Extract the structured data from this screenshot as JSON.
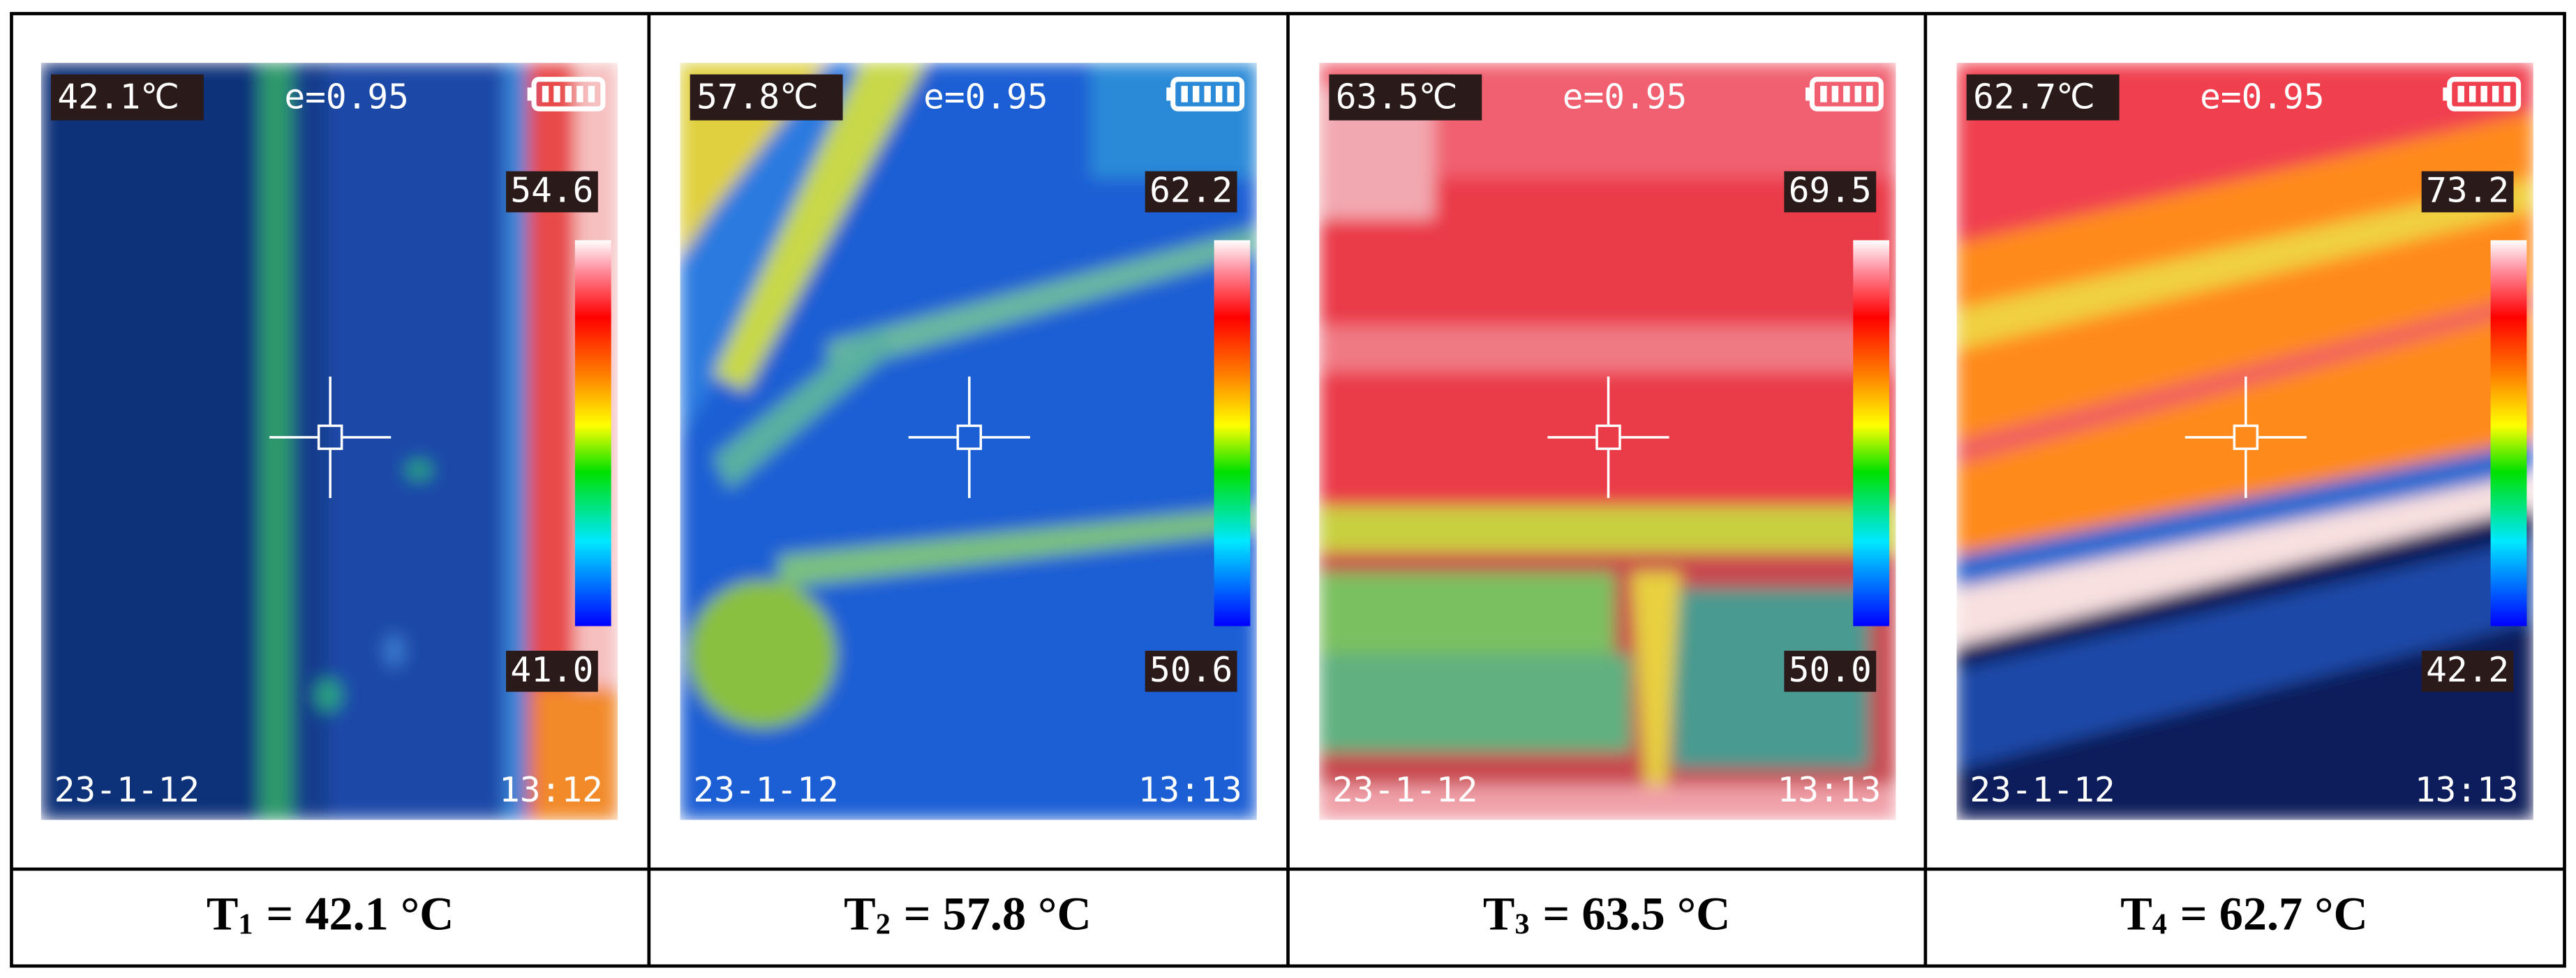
{
  "panels": [
    {
      "temperature": "42.1℃",
      "emissivity": "e=0.95",
      "max": "54.6",
      "min": "41.0",
      "date": "23-1-12",
      "time": "13:12",
      "caption": {
        "symbol": "T",
        "subscript": "1",
        "text": "= 42.1 °C"
      }
    },
    {
      "temperature": "57.8℃",
      "emissivity": "e=0.95",
      "max": "62.2",
      "min": "50.6",
      "date": "23-1-12",
      "time": "13:13",
      "caption": {
        "symbol": "T",
        "subscript": "2",
        "text": "= 57.8 °C"
      }
    },
    {
      "temperature": "63.5℃",
      "emissivity": "e=0.95",
      "max": "69.5",
      "min": "50.0",
      "date": "23-1-12",
      "time": "13:13",
      "caption": {
        "symbol": "T",
        "subscript": "3",
        "text": "= 63.5 °C"
      }
    },
    {
      "temperature": "62.7℃",
      "emissivity": "e=0.95",
      "max": "73.2",
      "min": "42.2",
      "date": "23-1-12",
      "time": "13:13",
      "caption": {
        "symbol": "T",
        "subscript": "4",
        "text": "= 62.7 °C"
      }
    }
  ]
}
